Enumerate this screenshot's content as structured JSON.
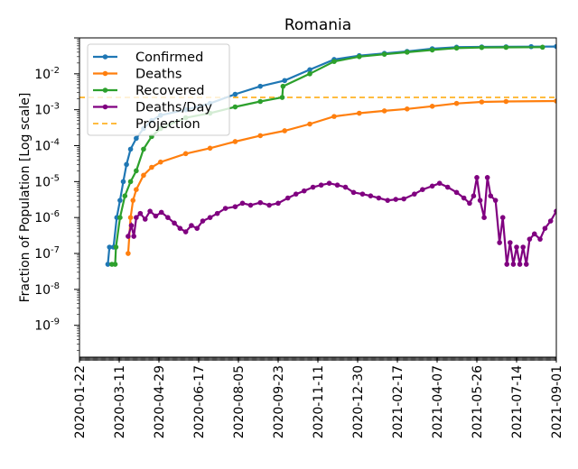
{
  "chart_data": {
    "type": "line",
    "title": "Romania",
    "ylabel": "Fraction of Population [Log scale]",
    "xlabel": "",
    "yscale": "log",
    "ylim": [
      1.3e-10,
      0.1
    ],
    "xlim": [
      "2020-01-22",
      "2021-09-01"
    ],
    "xticks": [
      "2020-01-22",
      "2020-03-11",
      "2020-04-29",
      "2020-06-17",
      "2020-08-05",
      "2020-09-23",
      "2020-11-11",
      "2020-12-30",
      "2021-02-17",
      "2021-04-07",
      "2021-05-26",
      "2021-07-14",
      "2021-09-01"
    ],
    "yticks": [
      {
        "v": 1e-09,
        "label": "10-9"
      },
      {
        "v": 1e-08,
        "label": "10-8"
      },
      {
        "v": 1e-07,
        "label": "10-7"
      },
      {
        "v": 1e-06,
        "label": "10-6"
      },
      {
        "v": 1e-05,
        "label": "10-5"
      },
      {
        "v": 0.0001,
        "label": "10-4"
      },
      {
        "v": 0.001,
        "label": "10-3"
      },
      {
        "v": 0.01,
        "label": "10-2"
      }
    ],
    "legend": "upper-left",
    "grid": false,
    "series": [
      {
        "name": "Confirmed",
        "color": "#1f77b4",
        "points": [
          [
            "2020-02-26",
            5e-08
          ],
          [
            "2020-02-28",
            1.5e-07
          ],
          [
            "2020-03-04",
            1.5e-07
          ],
          [
            "2020-03-08",
            1e-06
          ],
          [
            "2020-03-12",
            3e-06
          ],
          [
            "2020-03-16",
            1e-05
          ],
          [
            "2020-03-20",
            3e-05
          ],
          [
            "2020-03-25",
            8e-05
          ],
          [
            "2020-04-01",
            0.00016
          ],
          [
            "2020-04-10",
            0.0003
          ],
          [
            "2020-04-20",
            0.0005
          ],
          [
            "2020-05-01",
            0.0007
          ],
          [
            "2020-06-01",
            0.001
          ],
          [
            "2020-07-01",
            0.0015
          ],
          [
            "2020-08-01",
            0.0027
          ],
          [
            "2020-09-01",
            0.0045
          ],
          [
            "2020-10-01",
            0.0065
          ],
          [
            "2020-11-01",
            0.013
          ],
          [
            "2020-12-01",
            0.025
          ],
          [
            "2021-01-01",
            0.032
          ],
          [
            "2021-02-01",
            0.037
          ],
          [
            "2021-03-01",
            0.042
          ],
          [
            "2021-04-01",
            0.05
          ],
          [
            "2021-05-01",
            0.055
          ],
          [
            "2021-06-01",
            0.056
          ],
          [
            "2021-07-01",
            0.0565
          ],
          [
            "2021-08-01",
            0.057
          ],
          [
            "2021-09-01",
            0.0575
          ]
        ]
      },
      {
        "name": "Deaths",
        "color": "#ff7f0e",
        "points": [
          [
            "2020-03-22",
            1e-07
          ],
          [
            "2020-03-25",
            1e-06
          ],
          [
            "2020-03-28",
            3e-06
          ],
          [
            "2020-04-01",
            6e-06
          ],
          [
            "2020-04-10",
            1.5e-05
          ],
          [
            "2020-04-20",
            2.5e-05
          ],
          [
            "2020-05-01",
            3.5e-05
          ],
          [
            "2020-06-01",
            6e-05
          ],
          [
            "2020-07-01",
            8.5e-05
          ],
          [
            "2020-08-01",
            0.00013
          ],
          [
            "2020-09-01",
            0.00019
          ],
          [
            "2020-10-01",
            0.00026
          ],
          [
            "2020-11-01",
            0.0004
          ],
          [
            "2020-12-01",
            0.00065
          ],
          [
            "2021-01-01",
            0.0008
          ],
          [
            "2021-02-01",
            0.00093
          ],
          [
            "2021-03-01",
            0.00105
          ],
          [
            "2021-04-01",
            0.00125
          ],
          [
            "2021-05-01",
            0.0015
          ],
          [
            "2021-06-01",
            0.00165
          ],
          [
            "2021-07-01",
            0.0017
          ],
          [
            "2021-09-01",
            0.00175
          ]
        ]
      },
      {
        "name": "Recovered",
        "color": "#2ca02c",
        "points": [
          [
            "2020-03-02",
            5e-08
          ],
          [
            "2020-03-06",
            5e-08
          ],
          [
            "2020-03-07",
            1.5e-07
          ],
          [
            "2020-03-12",
            1e-06
          ],
          [
            "2020-03-18",
            4e-06
          ],
          [
            "2020-03-25",
            1e-05
          ],
          [
            "2020-04-01",
            2e-05
          ],
          [
            "2020-04-10",
            8e-05
          ],
          [
            "2020-04-20",
            0.00018
          ],
          [
            "2020-05-01",
            0.0003
          ],
          [
            "2020-06-01",
            0.0006
          ],
          [
            "2020-07-01",
            0.0008
          ],
          [
            "2020-08-01",
            0.0012
          ],
          [
            "2020-09-01",
            0.0017
          ],
          [
            "2020-09-28",
            0.0022
          ],
          [
            "2020-09-29",
            0.0045
          ],
          [
            "2020-11-01",
            0.01
          ],
          [
            "2020-12-01",
            0.022
          ],
          [
            "2021-01-01",
            0.03
          ],
          [
            "2021-02-01",
            0.035
          ],
          [
            "2021-03-01",
            0.04
          ],
          [
            "2021-04-01",
            0.046
          ],
          [
            "2021-05-01",
            0.052
          ],
          [
            "2021-06-01",
            0.054
          ],
          [
            "2021-07-01",
            0.0545
          ],
          [
            "2021-08-15",
            0.055
          ]
        ]
      },
      {
        "name": "Deaths/Day",
        "color": "#800080",
        "points": [
          [
            "2020-03-22",
            3e-07
          ],
          [
            "2020-03-26",
            6e-07
          ],
          [
            "2020-03-29",
            3e-07
          ],
          [
            "2020-04-01",
            1e-06
          ],
          [
            "2020-04-06",
            1.3e-06
          ],
          [
            "2020-04-12",
            9e-07
          ],
          [
            "2020-04-18",
            1.5e-06
          ],
          [
            "2020-04-25",
            1.1e-06
          ],
          [
            "2020-05-02",
            1.4e-06
          ],
          [
            "2020-05-10",
            1e-06
          ],
          [
            "2020-05-18",
            7e-07
          ],
          [
            "2020-05-25",
            5e-07
          ],
          [
            "2020-06-01",
            4e-07
          ],
          [
            "2020-06-08",
            6e-07
          ],
          [
            "2020-06-15",
            5e-07
          ],
          [
            "2020-06-22",
            8e-07
          ],
          [
            "2020-07-01",
            1e-06
          ],
          [
            "2020-07-10",
            1.3e-06
          ],
          [
            "2020-07-20",
            1.8e-06
          ],
          [
            "2020-08-01",
            2e-06
          ],
          [
            "2020-08-10",
            2.5e-06
          ],
          [
            "2020-08-20",
            2.2e-06
          ],
          [
            "2020-09-01",
            2.6e-06
          ],
          [
            "2020-09-12",
            2.2e-06
          ],
          [
            "2020-09-23",
            2.5e-06
          ],
          [
            "2020-10-05",
            3.5e-06
          ],
          [
            "2020-10-15",
            4.5e-06
          ],
          [
            "2020-10-25",
            5.5e-06
          ],
          [
            "2020-11-05",
            7e-06
          ],
          [
            "2020-11-15",
            8e-06
          ],
          [
            "2020-11-25",
            9e-06
          ],
          [
            "2020-12-05",
            8e-06
          ],
          [
            "2020-12-15",
            7e-06
          ],
          [
            "2020-12-25",
            5e-06
          ],
          [
            "2021-01-05",
            4.5e-06
          ],
          [
            "2021-01-15",
            4e-06
          ],
          [
            "2021-01-25",
            3.5e-06
          ],
          [
            "2021-02-05",
            3e-06
          ],
          [
            "2021-02-15",
            3.2e-06
          ],
          [
            "2021-02-25",
            3.3e-06
          ],
          [
            "2021-03-10",
            4.5e-06
          ],
          [
            "2021-03-20",
            6e-06
          ],
          [
            "2021-04-01",
            7.5e-06
          ],
          [
            "2021-04-10",
            9e-06
          ],
          [
            "2021-04-20",
            7e-06
          ],
          [
            "2021-05-01",
            5e-06
          ],
          [
            "2021-05-10",
            3.5e-06
          ],
          [
            "2021-05-17",
            2.5e-06
          ],
          [
            "2021-05-22",
            4e-06
          ],
          [
            "2021-05-26",
            1.3e-05
          ],
          [
            "2021-05-30",
            3e-06
          ],
          [
            "2021-06-04",
            1e-06
          ],
          [
            "2021-06-08",
            1.3e-05
          ],
          [
            "2021-06-12",
            4e-06
          ],
          [
            "2021-06-18",
            3e-06
          ],
          [
            "2021-06-23",
            2e-07
          ],
          [
            "2021-06-27",
            1e-06
          ],
          [
            "2021-07-02",
            5e-08
          ],
          [
            "2021-07-06",
            2e-07
          ],
          [
            "2021-07-10",
            5e-08
          ],
          [
            "2021-07-14",
            1.5e-07
          ],
          [
            "2021-07-18",
            5e-08
          ],
          [
            "2021-07-22",
            1.5e-07
          ],
          [
            "2021-07-26",
            5e-08
          ],
          [
            "2021-07-30",
            2.5e-07
          ],
          [
            "2021-08-05",
            3.5e-07
          ],
          [
            "2021-08-12",
            2.5e-07
          ],
          [
            "2021-08-18",
            5e-07
          ],
          [
            "2021-08-25",
            8e-07
          ],
          [
            "2021-09-01",
            1.5e-06
          ]
        ]
      },
      {
        "name": "Projection",
        "color": "#ffa500",
        "dashed": true,
        "points": [
          [
            "2020-01-22",
            0.0022
          ],
          [
            "2021-09-01",
            0.0022
          ]
        ]
      }
    ]
  }
}
